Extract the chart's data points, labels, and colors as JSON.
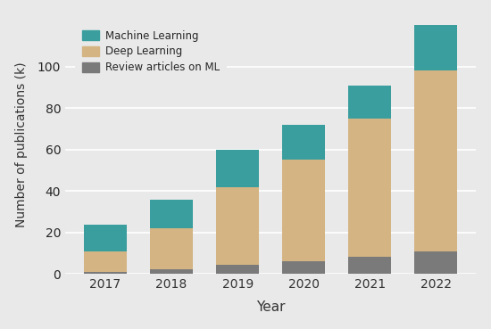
{
  "years": [
    "2017",
    "2018",
    "2019",
    "2020",
    "2021",
    "2022"
  ],
  "machine_learning": [
    24,
    36,
    60,
    72,
    91,
    120
  ],
  "deep_learning": [
    11,
    22,
    42,
    55,
    75,
    98
  ],
  "review_articles": [
    1.2,
    2.5,
    4.5,
    6,
    8.5,
    11
  ],
  "ml_color": "#3a9e9e",
  "dl_color": "#d4b483",
  "review_color": "#7a7a7a",
  "bg_color": "#e9e9e9",
  "xlabel": "Year",
  "ylabel": "Number of publications (k)",
  "legend_labels": [
    "Machine Learning",
    "Deep Learning",
    "Review articles on ML"
  ],
  "ylim": [
    0,
    125
  ],
  "yticks": [
    0,
    20,
    40,
    60,
    80,
    100
  ],
  "bar_width": 0.65
}
